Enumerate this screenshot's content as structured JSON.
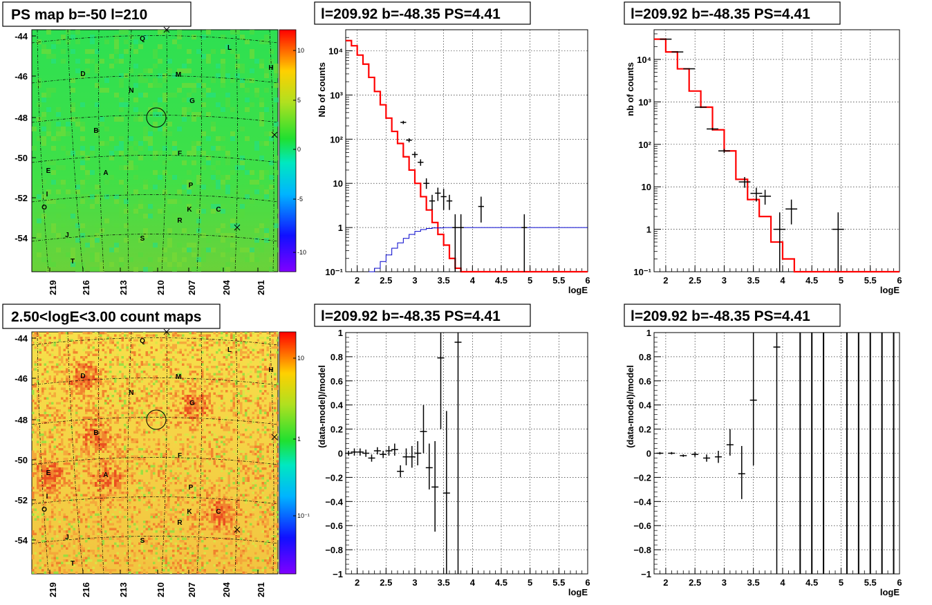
{
  "colors": {
    "model_histogram": "#ff0000",
    "exposure_curve": "#0000cc",
    "data_points": "#000000",
    "map_background_top": "#2ee052",
    "map_background_bottom": "#f7e04a"
  },
  "panels": {
    "ps_map": {
      "title": "PS map b=-50 l=210",
      "y_ticks": [
        "-44",
        "-46",
        "-48",
        "-50",
        "-52",
        "-54"
      ],
      "x_ticks": [
        "219",
        "216",
        "213",
        "210",
        "207",
        "204",
        "201"
      ],
      "colorbar_ticks": [
        "10",
        "5",
        "0",
        "-5",
        "-10"
      ],
      "sources": [
        "Q",
        "L",
        "H",
        "D",
        "M",
        "N",
        "G",
        "B",
        "F",
        "E",
        "A",
        "P",
        "I",
        "O",
        "K",
        "C",
        "R",
        "J",
        "S",
        "T"
      ]
    },
    "count_map": {
      "title": "2.50<logE<3.00 count maps",
      "y_ticks": [
        "-44",
        "-46",
        "-48",
        "-50",
        "-52",
        "-54"
      ],
      "x_ticks": [
        "219",
        "216",
        "213",
        "210",
        "207",
        "204",
        "201"
      ],
      "colorbar_ticks": [
        "10",
        "1",
        "10⁻¹"
      ],
      "sources": [
        "Q",
        "L",
        "H",
        "D",
        "M",
        "N",
        "G",
        "B",
        "F",
        "E",
        "A",
        "P",
        "I",
        "O",
        "K",
        "C",
        "R",
        "J",
        "S",
        "T"
      ]
    }
  },
  "chart_data": [
    {
      "id": "spectrum_ps",
      "type": "line",
      "title": "l=209.92 b=-48.35 PS=4.41",
      "xlabel": "logE",
      "ylabel": "Nb of counts",
      "xlim": [
        1.8,
        6
      ],
      "ylim": [
        0.1,
        30000
      ],
      "yscale": "log",
      "grid": true,
      "x_ticks": [
        "2",
        "2.5",
        "3",
        "3.5",
        "4",
        "4.5",
        "5",
        "5.5",
        "6"
      ],
      "y_ticks": [
        "10⁻¹",
        "1",
        "10",
        "10²",
        "10³",
        "10⁴"
      ],
      "series": [
        {
          "role": "model histogram (red)",
          "bin_edges": [
            1.8,
            1.9,
            2.0,
            2.1,
            2.2,
            2.3,
            2.4,
            2.5,
            2.6,
            2.7,
            2.8,
            2.9,
            3.0,
            3.1,
            3.2,
            3.3,
            3.4,
            3.5,
            3.6,
            3.7,
            3.8,
            3.9,
            4.0,
            6.0
          ],
          "values": [
            17000,
            13000,
            8000,
            5000,
            2500,
            1200,
            600,
            300,
            150,
            80,
            40,
            20,
            10,
            5,
            2.5,
            1.3,
            0.7,
            0.4,
            0.2,
            0.12,
            0.1,
            0.1,
            0.1
          ]
        },
        {
          "role": "exposure curve (blue)",
          "x": [
            2.2,
            2.3,
            2.4,
            2.5,
            2.6,
            2.7,
            2.8,
            2.9,
            3.0,
            3.1,
            3.2,
            3.3,
            3.5,
            6.0
          ],
          "y": [
            0.1,
            0.12,
            0.17,
            0.24,
            0.34,
            0.45,
            0.57,
            0.7,
            0.82,
            0.9,
            0.95,
            0.98,
            1.0,
            1.0
          ]
        },
        {
          "role": "data points with error bars",
          "x": [
            2.8,
            2.9,
            3.0,
            3.1,
            3.2,
            3.3,
            3.4,
            3.5,
            3.6,
            3.7,
            3.8,
            4.15,
            4.9
          ],
          "y": [
            240,
            95,
            45,
            30,
            10,
            4,
            6,
            5,
            4,
            1,
            1,
            3,
            1
          ],
          "x_err": [
            0.05,
            0.05,
            0.05,
            0.05,
            0.05,
            0.05,
            0.05,
            0.05,
            0.05,
            0.05,
            0.05,
            0.05,
            0.05
          ],
          "y_lo": [
            220,
            85,
            38,
            25,
            7.5,
            2.5,
            4,
            2.5,
            2.5,
            0.1,
            0.1,
            1.3,
            0.1
          ],
          "y_hi": [
            260,
            105,
            52,
            35,
            13,
            5.5,
            8,
            7.5,
            5.5,
            2.0,
            2.0,
            5.0,
            2.0
          ]
        }
      ]
    },
    {
      "id": "spectrum_model",
      "type": "line",
      "title": "l=209.92 b=-48.35 PS=4.41",
      "xlabel": "logE",
      "ylabel": "nb of counts",
      "xlim": [
        1.8,
        6
      ],
      "ylim": [
        0.1,
        50000
      ],
      "yscale": "log",
      "grid": true,
      "x_ticks": [
        "2",
        "2.5",
        "3",
        "3.5",
        "4",
        "4.5",
        "5",
        "5.5",
        "6"
      ],
      "y_ticks": [
        "10⁻¹",
        "1",
        "10",
        "10²",
        "10³",
        "10⁴"
      ],
      "series": [
        {
          "role": "model histogram (red)",
          "bin_edges": [
            1.8,
            2.0,
            2.2,
            2.4,
            2.6,
            2.8,
            3.0,
            3.2,
            3.4,
            3.6,
            3.8,
            4.0,
            4.2,
            6.0
          ],
          "values": [
            30000,
            15000,
            6000,
            1800,
            750,
            220,
            70,
            15,
            5,
            2,
            0.5,
            0.2,
            0.1
          ]
        },
        {
          "role": "data points with error bars",
          "x": [
            2.0,
            2.2,
            2.4,
            2.6,
            2.8,
            3.0,
            3.35,
            3.55,
            3.7,
            3.95,
            4.15,
            4.95
          ],
          "y": [
            30000,
            15000,
            6000,
            750,
            230,
            70,
            13,
            7,
            6,
            1,
            3,
            1
          ],
          "x_err": [
            0.1,
            0.1,
            0.1,
            0.1,
            0.1,
            0.1,
            0.1,
            0.1,
            0.1,
            0.1,
            0.1,
            0.1
          ],
          "y_lo": [
            29500,
            14500,
            5800,
            720,
            215,
            62,
            9.5,
            4.5,
            3.8,
            0.1,
            1.3,
            0.1
          ],
          "y_hi": [
            30500,
            15500,
            6200,
            780,
            245,
            78,
            17,
            9.5,
            8.5,
            2.5,
            5.0,
            2.5
          ]
        }
      ]
    },
    {
      "id": "residual_ps",
      "type": "scatter",
      "title": "l=209.92 b=-48.35 PS=4.41",
      "xlabel": "logE",
      "ylabel": "(data-model)/model",
      "xlim": [
        1.8,
        6
      ],
      "ylim": [
        -1,
        1
      ],
      "grid": true,
      "x_ticks": [
        "2",
        "2.5",
        "3",
        "3.5",
        "4",
        "4.5",
        "5",
        "5.5",
        "6"
      ],
      "y_ticks": [
        "−1",
        "−0.8",
        "−0.6",
        "−0.4",
        "−0.2",
        "0",
        "0.2",
        "0.4",
        "0.6",
        "0.8",
        "1"
      ],
      "points": {
        "x": [
          1.85,
          1.95,
          2.05,
          2.15,
          2.25,
          2.35,
          2.45,
          2.55,
          2.65,
          2.75,
          2.85,
          2.95,
          3.05,
          3.15,
          3.25,
          3.35,
          3.45,
          3.55,
          3.75
        ],
        "y": [
          0.0,
          0.01,
          0.01,
          0.0,
          -0.04,
          0.02,
          -0.01,
          0.02,
          0.03,
          -0.15,
          -0.03,
          -0.03,
          0.0,
          0.18,
          -0.12,
          -0.28,
          0.79,
          -0.33,
          0.92
        ],
        "y_lo": [
          -0.02,
          -0.02,
          -0.02,
          -0.03,
          -0.07,
          -0.01,
          -0.04,
          -0.02,
          -0.02,
          -0.2,
          -0.1,
          -0.12,
          -0.1,
          0.0,
          -0.3,
          -0.65,
          0.2,
          -1.0,
          -1.0
        ],
        "y_hi": [
          0.02,
          0.04,
          0.04,
          0.03,
          -0.01,
          0.05,
          0.02,
          0.06,
          0.08,
          -0.1,
          0.04,
          0.06,
          0.1,
          0.4,
          0.08,
          0.1,
          1.0,
          0.35,
          1.0
        ]
      }
    },
    {
      "id": "residual_model",
      "type": "scatter",
      "title": "l=209.92 b=-48.35 PS=4.41",
      "xlabel": "logE",
      "ylabel": "(data-model)/model",
      "xlim": [
        1.8,
        6
      ],
      "ylim": [
        -1,
        1
      ],
      "grid": true,
      "x_ticks": [
        "2",
        "2.5",
        "3",
        "3.5",
        "4",
        "4.5",
        "5",
        "5.5",
        "6"
      ],
      "y_ticks": [
        "−1",
        "−0.8",
        "−0.6",
        "−0.4",
        "−0.2",
        "0",
        "0.2",
        "0.4",
        "0.6",
        "0.8",
        "1"
      ],
      "points": {
        "x": [
          1.9,
          2.1,
          2.3,
          2.5,
          2.7,
          2.9,
          3.1,
          3.3,
          3.5,
          3.9
        ],
        "y": [
          0.0,
          0.0,
          -0.02,
          -0.01,
          -0.04,
          -0.03,
          0.07,
          -0.17,
          0.44,
          0.88
        ],
        "y_lo": [
          -0.01,
          -0.01,
          -0.03,
          -0.03,
          -0.07,
          -0.08,
          -0.02,
          -0.38,
          -0.1,
          -1.0
        ],
        "y_hi": [
          0.01,
          0.01,
          -0.01,
          0.01,
          -0.01,
          0.02,
          0.2,
          0.06,
          1.0,
          1.0
        ]
      },
      "full_range_bars_x": [
        4.3,
        4.5,
        4.7,
        5.1,
        5.3,
        5.5,
        5.7,
        5.9
      ]
    }
  ]
}
